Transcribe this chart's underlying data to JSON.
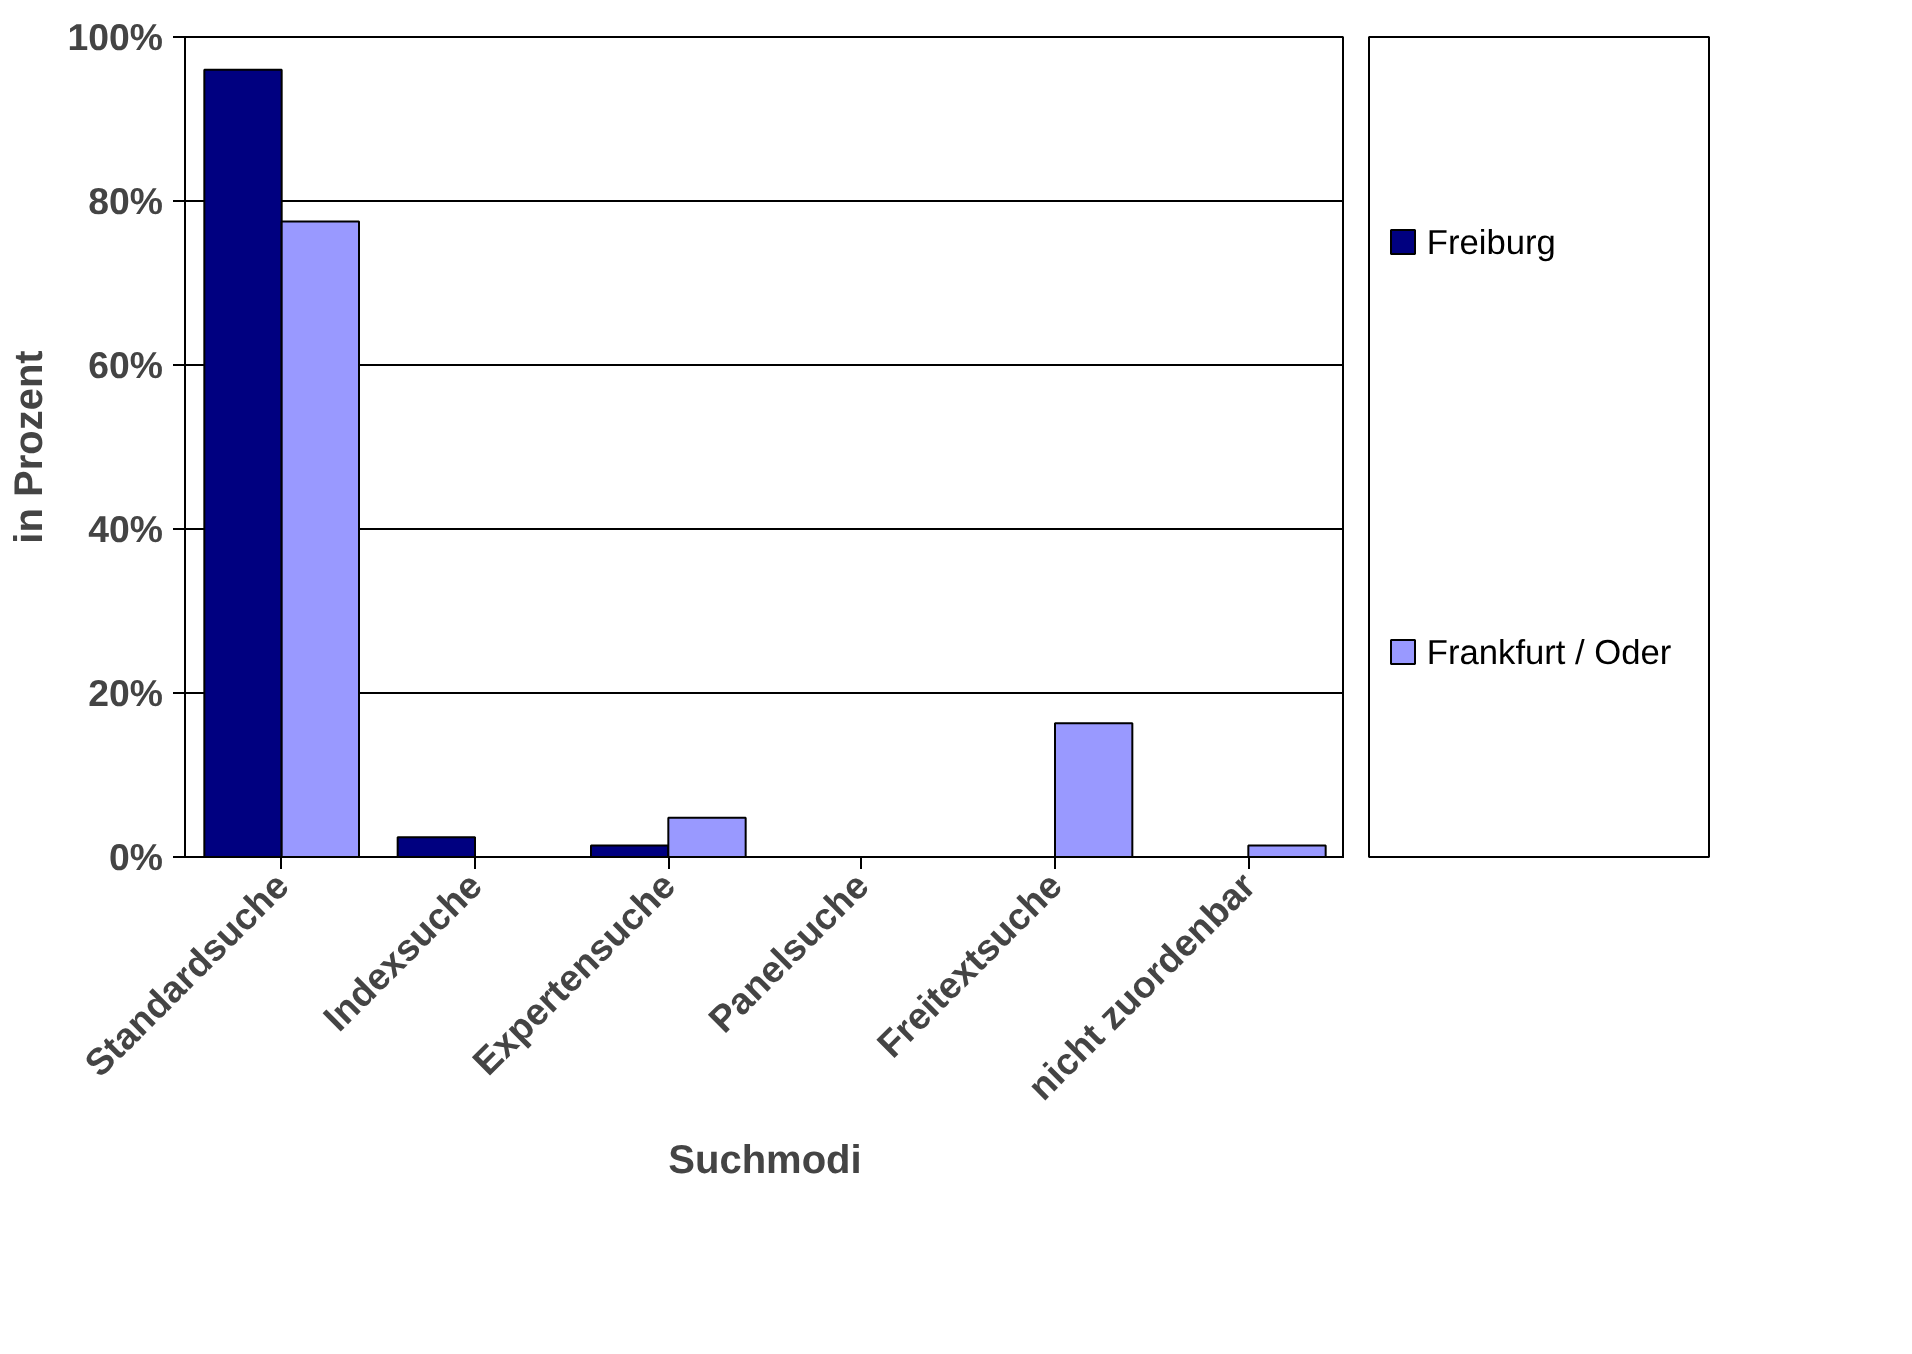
{
  "chart_data": {
    "type": "bar",
    "xlabel": "Suchmodi",
    "ylabel": "in Prozent",
    "categories": [
      "Standardsuche",
      "Indexsuche",
      "Expertensuche",
      "Panelsuche",
      "Freitextsuche",
      "nicht zuordenbar"
    ],
    "series": [
      {
        "name": "Freiburg",
        "color": "#000080",
        "values": [
          96,
          2.4,
          1.4,
          0,
          0,
          0
        ]
      },
      {
        "name": "Frankfurt / Oder",
        "color": "#9999ff",
        "values": [
          77.5,
          0,
          4.8,
          0,
          16.3,
          1.4
        ]
      }
    ],
    "ylim": [
      0,
      100
    ],
    "yticks": [
      {
        "value": 0,
        "label": "0%"
      },
      {
        "value": 20,
        "label": "20%"
      },
      {
        "value": 40,
        "label": "40%"
      },
      {
        "value": 60,
        "label": "60%"
      },
      {
        "value": 80,
        "label": "80%"
      },
      {
        "value": 100,
        "label": "100%"
      }
    ],
    "grid": "y",
    "legend": "right"
  }
}
